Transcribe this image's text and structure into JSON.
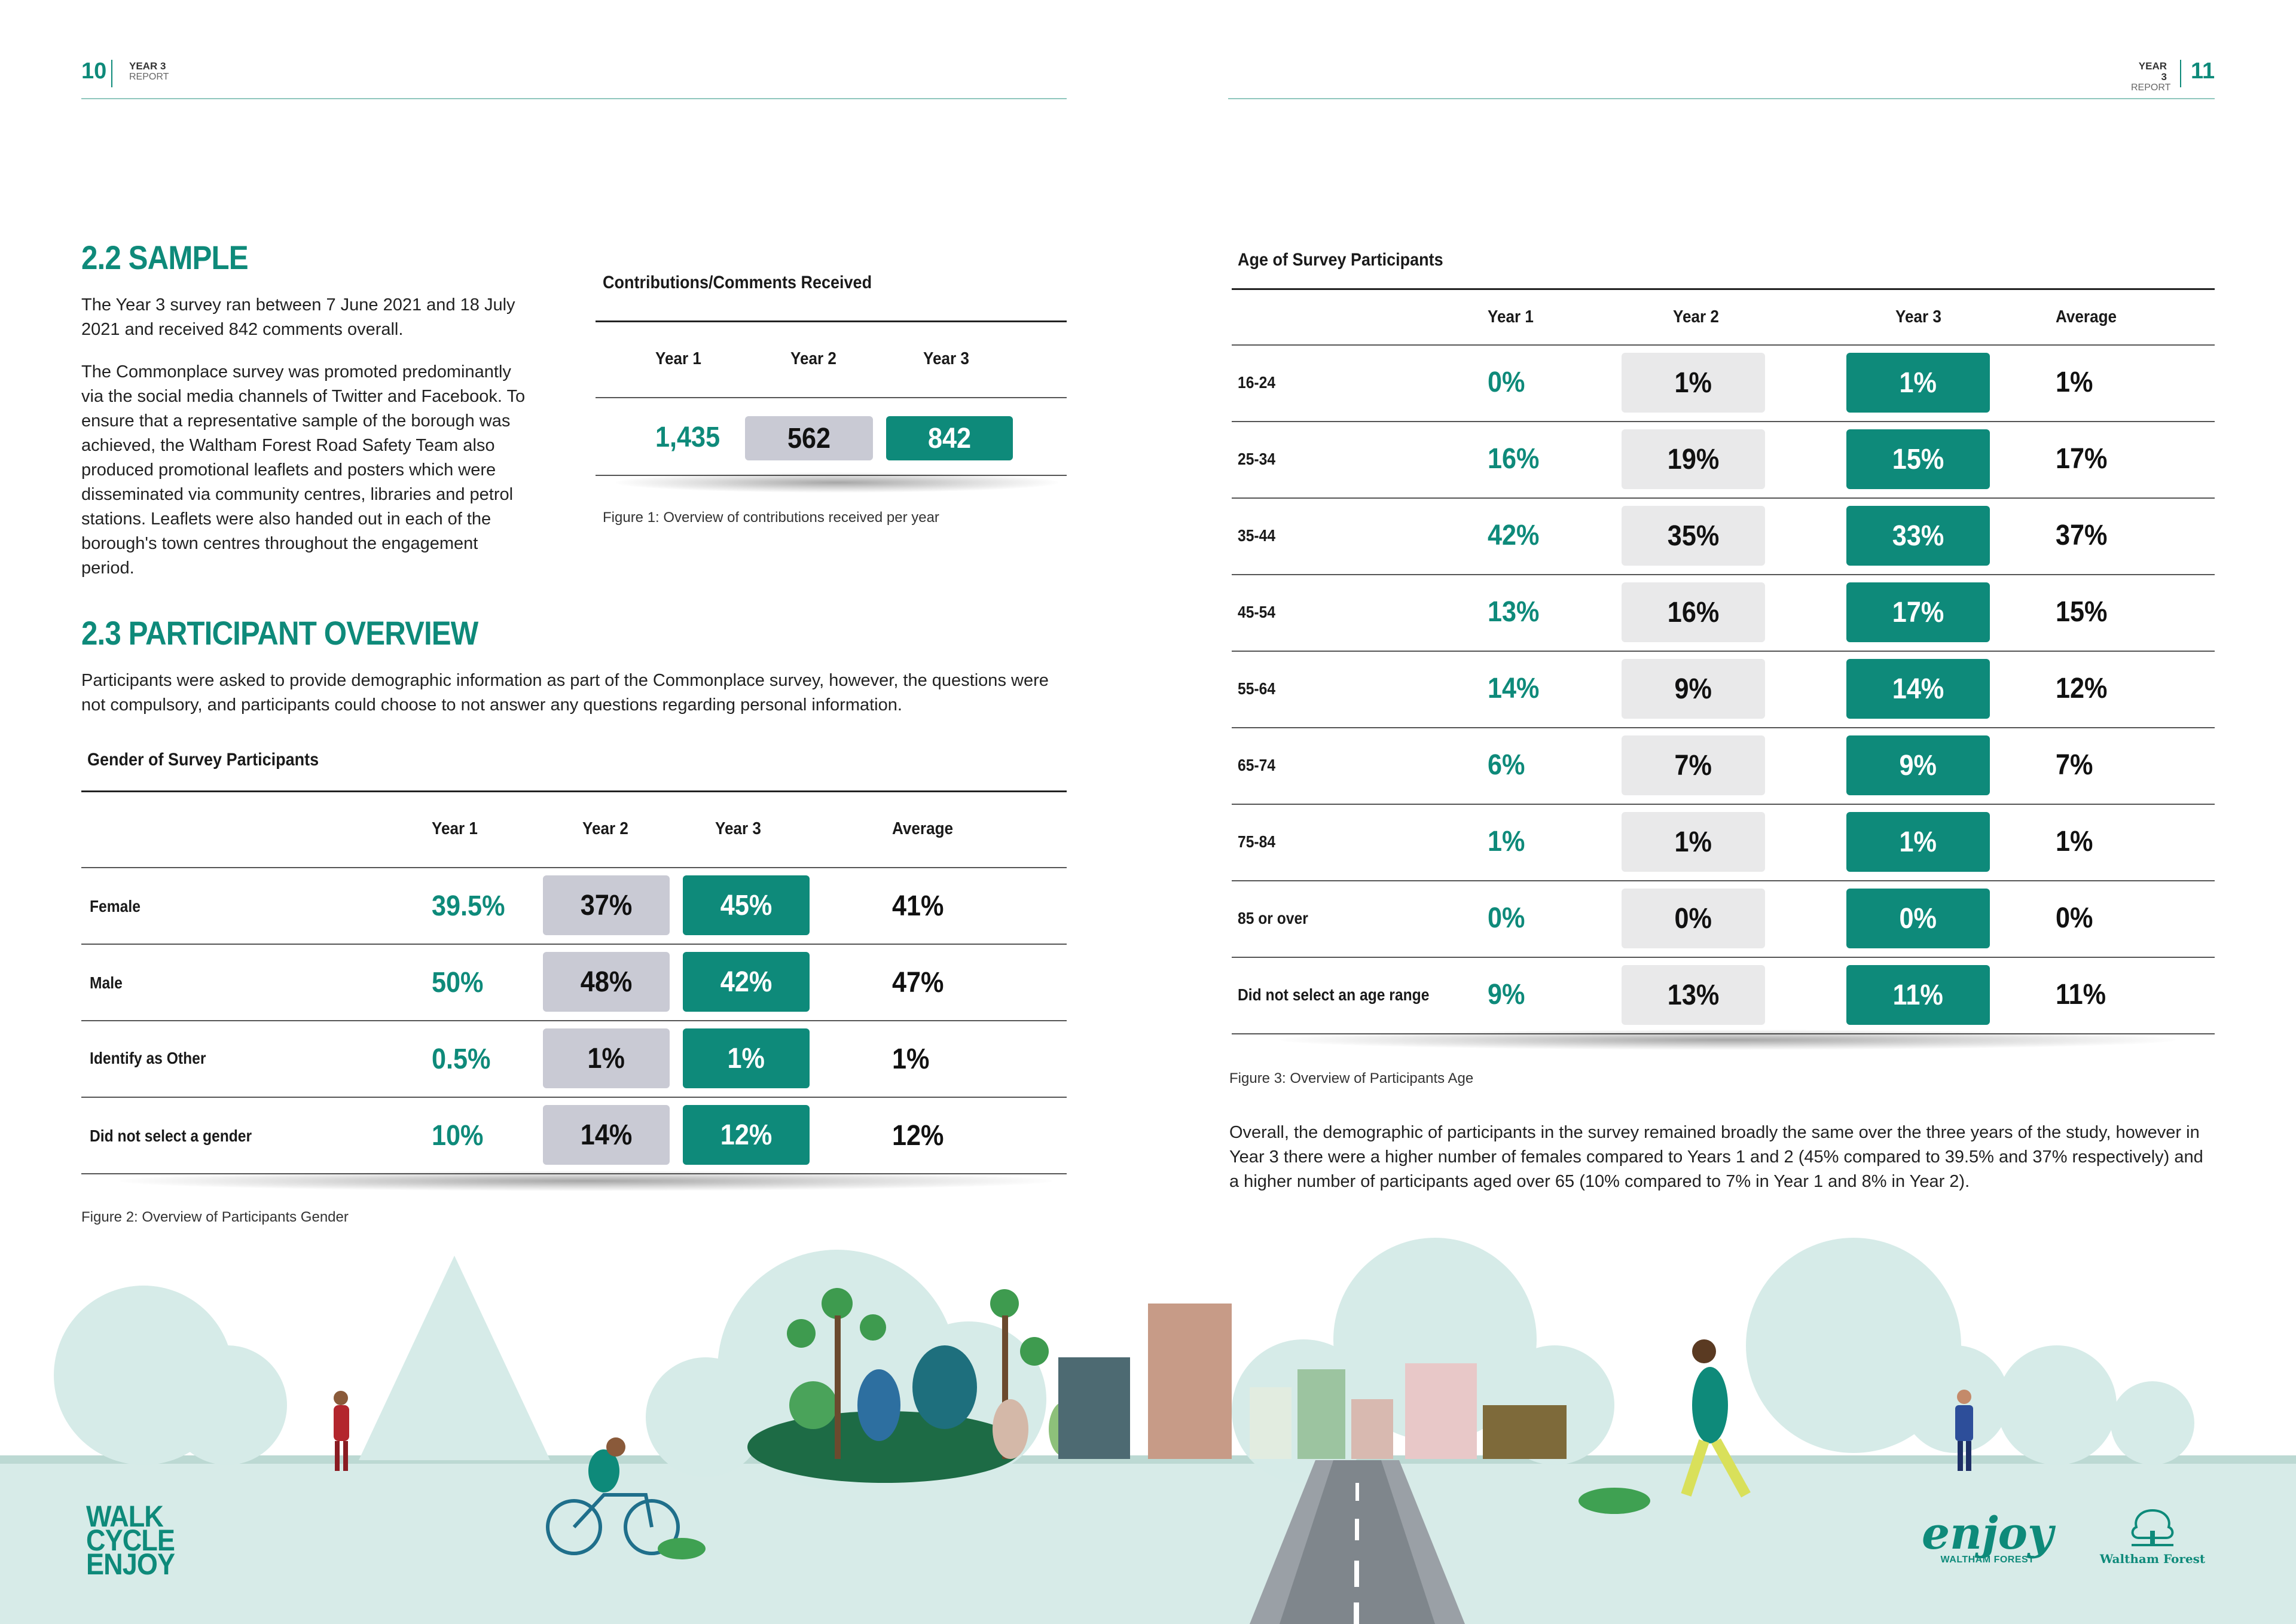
{
  "header": {
    "left_page_number": "10",
    "left_report_line1": "YEAR 3",
    "left_report_line2": "REPORT",
    "right_report_line1": "YEAR 3",
    "right_report_line2": "REPORT",
    "right_page_number": "11"
  },
  "sample": {
    "heading": "2.2 SAMPLE",
    "para1": "The Year 3 survey ran between 7 June 2021 and 18 July 2021 and received 842 comments overall.",
    "para2": "The Commonplace survey was promoted predominantly via the social media channels of Twitter and Facebook. To ensure that a representative sample of the borough was achieved, the Waltham Forest Road Safety Team also produced promotional leaflets and posters which were disseminated via community centres, libraries and petrol stations. Leaflets were also handed out in each of the borough's town centres throughout the engagement period."
  },
  "contributions": {
    "title": "Contributions/Comments Received",
    "headers": [
      "Year 1",
      "Year 2",
      "Year 3"
    ],
    "values": [
      "1,435",
      "562",
      "842"
    ],
    "caption": "Figure 1: Overview of contributions received per year"
  },
  "overview": {
    "heading": "2.3 PARTICIPANT OVERVIEW",
    "para": "Participants were asked to provide demographic information as part of the Commonplace survey, however, the questions were not compulsory, and participants could choose to not answer any questions regarding personal information."
  },
  "gender_table": {
    "title": "Gender of Survey Participants",
    "headers": [
      "Year 1",
      "Year 2",
      "Year 3",
      "Average"
    ],
    "rows": [
      {
        "label": "Female",
        "y1": "39.5%",
        "y2": "37%",
        "y3": "45%",
        "avg": "41%"
      },
      {
        "label": "Male",
        "y1": "50%",
        "y2": "48%",
        "y3": "42%",
        "avg": "47%"
      },
      {
        "label": "Identify as Other",
        "y1": "0.5%",
        "y2": "1%",
        "y3": "1%",
        "avg": "1%"
      },
      {
        "label": "Did not select a gender",
        "y1": "10%",
        "y2": "14%",
        "y3": "12%",
        "avg": "12%"
      }
    ],
    "caption": "Figure 2: Overview of Participants Gender"
  },
  "age_table": {
    "title": "Age of Survey Participants",
    "headers": [
      "Year 1",
      "Year 2",
      "Year 3",
      "Average"
    ],
    "rows": [
      {
        "label": "16-24",
        "y1": "0%",
        "y2": "1%",
        "y3": "1%",
        "avg": "1%"
      },
      {
        "label": "25-34",
        "y1": "16%",
        "y2": "19%",
        "y3": "15%",
        "avg": "17%"
      },
      {
        "label": "35-44",
        "y1": "42%",
        "y2": "35%",
        "y3": "33%",
        "avg": "37%"
      },
      {
        "label": "45-54",
        "y1": "13%",
        "y2": "16%",
        "y3": "17%",
        "avg": "15%"
      },
      {
        "label": "55-64",
        "y1": "14%",
        "y2": "9%",
        "y3": "14%",
        "avg": "12%"
      },
      {
        "label": "65-74",
        "y1": "6%",
        "y2": "7%",
        "y3": "9%",
        "avg": "7%"
      },
      {
        "label": "75-84",
        "y1": "1%",
        "y2": "1%",
        "y3": "1%",
        "avg": "1%"
      },
      {
        "label": "85 or over",
        "y1": "0%",
        "y2": "0%",
        "y3": "0%",
        "avg": "0%"
      },
      {
        "label": "Did not select an age range",
        "y1": "9%",
        "y2": "13%",
        "y3": "11%",
        "avg": "11%"
      }
    ],
    "caption": "Figure 3: Overview of Participants Age"
  },
  "summary": {
    "para": "Overall, the demographic of participants in the survey remained broadly the same over the three years of the study, however in Year 3 there were a higher number of females compared to Years 1 and 2 (45% compared to 39.5% and 37% respectively) and a higher number of participants aged over 65 (10% compared to 7% in Year 1 and 8% in Year 2)."
  },
  "footer": {
    "wce_line1": "WALK",
    "wce_line2": "CYCLE",
    "wce_line3": "ENJOY",
    "enjoy_logo_text": "enjoy",
    "enjoy_logo_sub": "WALTHAM FOREST",
    "council_logo_text": "Waltham Forest"
  },
  "colors": {
    "teal": "#0e8a7a",
    "grey_box": "#c9cad4",
    "light_grey_box": "#e9e9ea",
    "background_ground": "#d7ebe8"
  }
}
